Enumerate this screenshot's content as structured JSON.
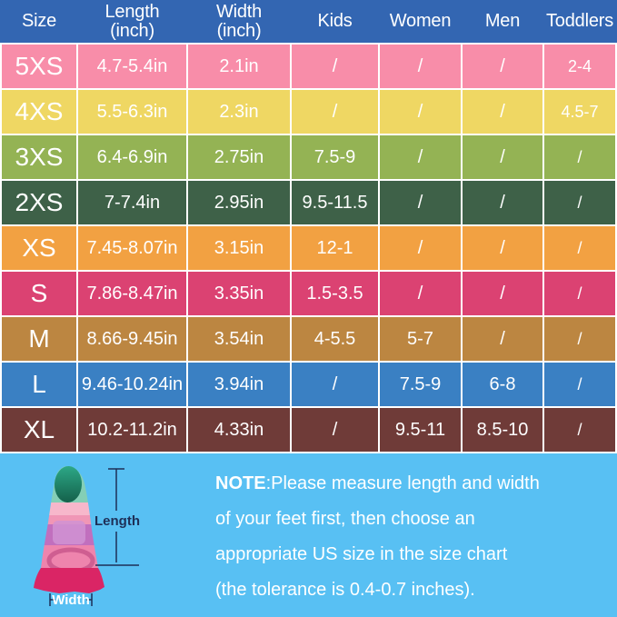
{
  "chart_data": {
    "type": "table",
    "header_bg": "#3366b2",
    "columns": [
      {
        "line1": "Size",
        "line2": ""
      },
      {
        "line1": "Length",
        "line2": "(inch)"
      },
      {
        "line1": "Width",
        "line2": "(inch)"
      },
      {
        "line1": "Kids",
        "line2": ""
      },
      {
        "line1": "Women",
        "line2": ""
      },
      {
        "line1": "Men",
        "line2": ""
      },
      {
        "line1": "Toddlers",
        "line2": ""
      }
    ],
    "rows": [
      {
        "size": "5XS",
        "cells": [
          "4.7-5.4in",
          "2.1in",
          "/",
          "/",
          "/",
          "2-4"
        ],
        "color": "#f88da9"
      },
      {
        "size": "4XS",
        "cells": [
          "5.5-6.3in",
          "2.3in",
          "/",
          "/",
          "/",
          "4.5-7"
        ],
        "color": "#efd763"
      },
      {
        "size": "3XS",
        "cells": [
          "6.4-6.9in",
          "2.75in",
          "7.5-9",
          "/",
          "/",
          "/"
        ],
        "color": "#94b354"
      },
      {
        "size": "2XS",
        "cells": [
          "7-7.4in",
          "2.95in",
          "9.5-11.5",
          "/",
          "/",
          "/"
        ],
        "color": "#3e6148"
      },
      {
        "size": "XS",
        "cells": [
          "7.45-8.07in",
          "3.15in",
          "12-1",
          "/",
          "/",
          "/"
        ],
        "color": "#f2a142"
      },
      {
        "size": "S",
        "cells": [
          "7.86-8.47in",
          "3.35in",
          "1.5-3.5",
          "/",
          "/",
          "/"
        ],
        "color": "#db4272"
      },
      {
        "size": "M",
        "cells": [
          "8.66-9.45in",
          "3.54in",
          "4-5.5",
          "5-7",
          "/",
          "/"
        ],
        "color": "#bc8641"
      },
      {
        "size": "L",
        "cells": [
          "9.46-10.24in",
          "3.94in",
          "/",
          "7.5-9",
          "6-8",
          "/"
        ],
        "color": "#3a80c3"
      },
      {
        "size": "XL",
        "cells": [
          "10.2-11.2in",
          "4.33in",
          "/",
          "9.5-11",
          "8.5-10",
          "/"
        ],
        "color": "#6f3b38"
      }
    ]
  },
  "note": {
    "title": "NOTE",
    "lines": [
      ":Please measure length and width",
      "of your feet first, then choose an",
      "appropriate US size in the size chart",
      "(the tolerance is 0.4-0.7 inches)."
    ]
  },
  "diagram": {
    "length_label": "Length",
    "width_label": "Width",
    "colors": {
      "fin_tip_top": "#2ca685",
      "fin_tip_bottom": "#14604a",
      "fin_mint": "#84cfb6",
      "fin_light_pink": "#f7b7cb",
      "fin_mid_pink": "#f096b6",
      "fin_purple": "#c16fbe",
      "fin_purple_light": "#d093d3",
      "fin_pink": "#ee84ad",
      "fin_crimson": "#da2565",
      "fin_ring": "#cf5e91",
      "annotation": "#1e2f57"
    }
  },
  "colors": {
    "bottom_bg": "#58c0f3",
    "grid_line": "#ffffff",
    "text": "#ffffff"
  }
}
